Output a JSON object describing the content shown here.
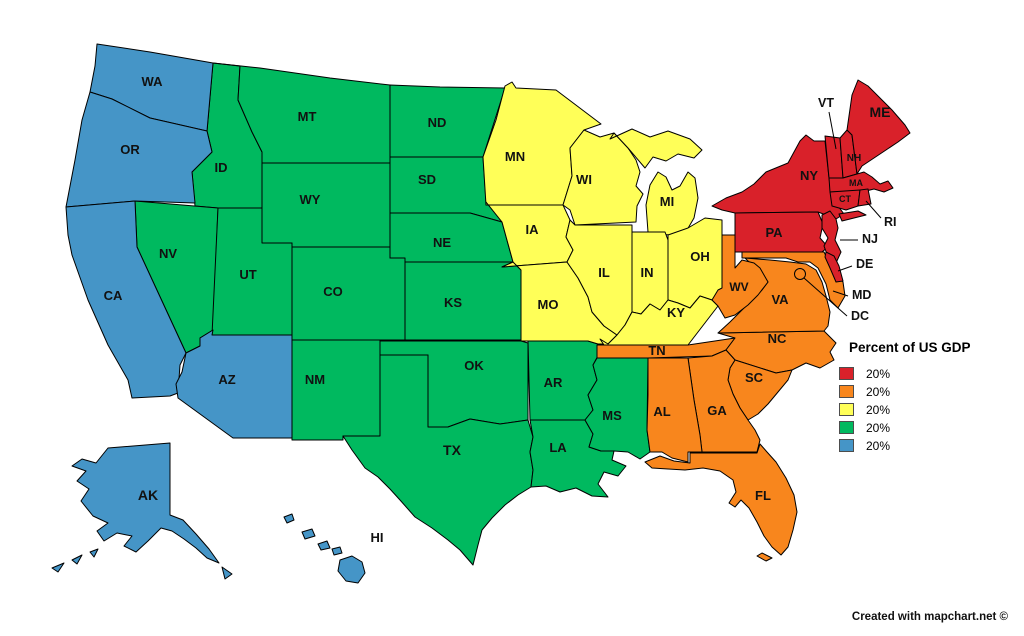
{
  "legend": {
    "title": "Percent of US GDP",
    "items": [
      {
        "label": "20%",
        "color": "#d9212a"
      },
      {
        "label": "20%",
        "color": "#f8861d"
      },
      {
        "label": "20%",
        "color": "#ffff58"
      },
      {
        "label": "20%",
        "color": "#00b95f"
      },
      {
        "label": "20%",
        "color": "#4595c7"
      }
    ]
  },
  "credit": "Created with mapchart.net ©",
  "map": {
    "stroke_color": "#000000",
    "groups": {
      "green": {
        "color": "#00b95f",
        "states": [
          "ID",
          "MT",
          "WY",
          "NV",
          "UT",
          "CO",
          "NM",
          "ND",
          "SD",
          "NE",
          "KS",
          "OK",
          "TX",
          "AR",
          "LA",
          "MS"
        ]
      },
      "yellow": {
        "color": "#ffff58",
        "states": [
          "MN",
          "WI",
          "MI",
          "IA",
          "MO",
          "IL",
          "IN",
          "OH",
          "KY"
        ]
      },
      "blue": {
        "color": "#4595c7",
        "states": [
          "WA",
          "OR",
          "CA",
          "AZ",
          "AK",
          "HI"
        ]
      },
      "orange": {
        "color": "#f8861d",
        "states": [
          "TN",
          "NC",
          "SC",
          "GA",
          "AL",
          "FL",
          "VA",
          "WV",
          "MD",
          "DC"
        ]
      },
      "red": {
        "color": "#d9212a",
        "states": [
          "NY",
          "PA",
          "VT",
          "NH",
          "ME",
          "MA",
          "CT",
          "RI",
          "NJ",
          "DE"
        ]
      }
    },
    "callouts": [
      "VT",
      "RI",
      "NJ",
      "DE",
      "MD",
      "DC"
    ]
  }
}
